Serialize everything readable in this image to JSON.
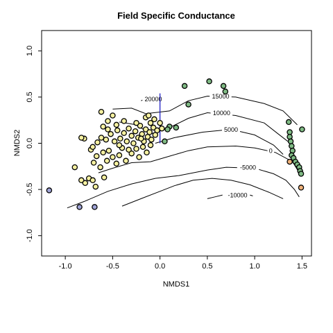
{
  "chart_data": {
    "type": "scatter",
    "title": "Field Specific Conductance",
    "xlabel": "NMDS1",
    "ylabel": "NMDS2",
    "xlim": [
      -1.25,
      1.6
    ],
    "ylim": [
      -1.22,
      1.22
    ],
    "xticks": [
      "-1.0",
      "-0.5",
      "0.0",
      "0.5",
      "1.0",
      "1.5"
    ],
    "xtick_values": [
      -1.0,
      -0.5,
      0.0,
      0.5,
      1.0,
      1.5
    ],
    "yticks": [
      "-1.0",
      "-0.5",
      "0.0",
      "0.5",
      "1.0"
    ],
    "ytick_values": [
      -1.0,
      -0.5,
      0.0,
      0.5,
      1.0
    ],
    "grid": false,
    "colors": {
      "yellow": "#f5f0a0",
      "green": "#7fba84",
      "purple": "#9fa3d6",
      "orange": "#f0b27a",
      "vector": "#1010c0"
    },
    "vector": {
      "from": [
        0.0,
        0.0
      ],
      "to": [
        0.0,
        0.54
      ]
    },
    "contours": [
      {
        "label": "20000",
        "label_at": [
          -0.07,
          0.48
        ],
        "points": [
          [
            -0.2,
            0.46
          ],
          [
            -0.1,
            0.5
          ],
          [
            0.0,
            0.52
          ]
        ]
      },
      {
        "label": "15000",
        "label_at": [
          0.64,
          0.51
        ],
        "points": [
          [
            -0.5,
            0.37
          ],
          [
            -0.3,
            0.38
          ],
          [
            -0.15,
            0.32
          ],
          [
            0.1,
            0.35
          ],
          [
            0.3,
            0.46
          ],
          [
            0.5,
            0.51
          ],
          [
            0.8,
            0.5
          ],
          [
            1.1,
            0.43
          ],
          [
            1.3,
            0.35
          ],
          [
            1.45,
            0.2
          ]
        ]
      },
      {
        "label": "10000",
        "label_at": [
          0.65,
          0.33
        ],
        "points": [
          [
            -0.43,
            0.23
          ],
          [
            -0.25,
            0.2
          ],
          [
            -0.1,
            0.1
          ],
          [
            0.1,
            0.17
          ],
          [
            0.3,
            0.27
          ],
          [
            0.5,
            0.33
          ],
          [
            0.8,
            0.3
          ],
          [
            1.1,
            0.22
          ],
          [
            1.25,
            0.1
          ],
          [
            1.35,
            0.02
          ]
        ]
      },
      {
        "label": "5000",
        "label_at": [
          0.75,
          0.15
        ],
        "points": [
          [
            -0.05,
            0.0
          ],
          [
            0.15,
            0.06
          ],
          [
            0.45,
            0.12
          ],
          [
            0.75,
            0.15
          ],
          [
            1.0,
            0.09
          ],
          [
            1.2,
            -0.02
          ],
          [
            1.3,
            -0.12
          ]
        ]
      },
      {
        "label": "0",
        "label_at": [
          1.17,
          -0.08
        ],
        "points": [
          [
            -0.65,
            -0.32
          ],
          [
            -0.5,
            -0.27
          ],
          [
            -0.3,
            -0.21
          ],
          [
            -0.1,
            -0.2
          ],
          [
            0.1,
            -0.14
          ],
          [
            0.3,
            -0.08
          ],
          [
            0.5,
            -0.04
          ],
          [
            0.8,
            -0.03
          ],
          [
            1.0,
            -0.05
          ],
          [
            1.22,
            -0.1
          ],
          [
            1.4,
            -0.2
          ],
          [
            1.47,
            -0.32
          ]
        ]
      },
      {
        "label": "-5000",
        "label_at": [
          0.93,
          -0.26
        ],
        "points": [
          [
            -0.98,
            -0.7
          ],
          [
            -0.8,
            -0.63
          ],
          [
            -0.55,
            -0.52
          ],
          [
            -0.3,
            -0.44
          ],
          [
            -0.05,
            -0.38
          ],
          [
            0.2,
            -0.35
          ],
          [
            0.5,
            -0.29
          ],
          [
            0.7,
            -0.26
          ],
          [
            1.0,
            -0.27
          ],
          [
            1.2,
            -0.33
          ],
          [
            1.33,
            -0.4
          ],
          [
            1.42,
            -0.5
          ],
          [
            1.47,
            -0.58
          ]
        ]
      },
      {
        "label": "-10000",
        "label_at": [
          0.82,
          -0.56
        ],
        "points": [
          [
            -0.4,
            -0.68
          ],
          [
            -0.2,
            -0.6
          ],
          [
            0.0,
            -0.52
          ],
          [
            0.15,
            -0.46
          ],
          [
            0.35,
            -0.4
          ],
          [
            0.55,
            -0.38
          ],
          [
            0.75,
            -0.4
          ],
          [
            0.95,
            -0.45
          ],
          [
            1.15,
            -0.53
          ],
          [
            1.3,
            -0.6
          ]
        ]
      },
      {
        "label": "",
        "label_at": null,
        "points": [
          [
            0.5,
            -0.6
          ],
          [
            0.58,
            -0.58
          ],
          [
            0.66,
            -0.56
          ]
        ]
      },
      {
        "label": "",
        "label_at": null,
        "points": [
          [
            0.95,
            -0.56
          ],
          [
            0.98,
            -0.57
          ]
        ]
      }
    ],
    "points": [
      {
        "x": -1.17,
        "y": -0.51,
        "c": "purple"
      },
      {
        "x": -0.85,
        "y": -0.69,
        "c": "purple"
      },
      {
        "x": -0.69,
        "y": -0.69,
        "c": "purple"
      },
      {
        "x": -0.9,
        "y": -0.26,
        "c": "yellow"
      },
      {
        "x": -0.83,
        "y": -0.4,
        "c": "yellow"
      },
      {
        "x": -0.79,
        "y": -0.43,
        "c": "yellow"
      },
      {
        "x": -0.75,
        "y": -0.38,
        "c": "yellow"
      },
      {
        "x": -0.71,
        "y": -0.4,
        "c": "yellow"
      },
      {
        "x": -0.68,
        "y": -0.47,
        "c": "yellow"
      },
      {
        "x": -0.59,
        "y": -0.37,
        "c": "yellow"
      },
      {
        "x": -0.63,
        "y": -0.26,
        "c": "yellow"
      },
      {
        "x": -0.7,
        "y": -0.21,
        "c": "yellow"
      },
      {
        "x": -0.67,
        "y": -0.14,
        "c": "yellow"
      },
      {
        "x": -0.73,
        "y": -0.07,
        "c": "yellow"
      },
      {
        "x": -0.8,
        "y": 0.05,
        "c": "yellow"
      },
      {
        "x": -0.83,
        "y": 0.06,
        "c": "yellow"
      },
      {
        "x": -0.71,
        "y": -0.04,
        "c": "yellow"
      },
      {
        "x": -0.66,
        "y": 0.01,
        "c": "yellow"
      },
      {
        "x": -0.62,
        "y": 0.06,
        "c": "yellow"
      },
      {
        "x": -0.6,
        "y": -0.1,
        "c": "yellow"
      },
      {
        "x": -0.56,
        "y": -0.19,
        "c": "yellow"
      },
      {
        "x": -0.54,
        "y": -0.08,
        "c": "yellow"
      },
      {
        "x": -0.5,
        "y": -0.15,
        "c": "yellow"
      },
      {
        "x": -0.46,
        "y": -0.22,
        "c": "yellow"
      },
      {
        "x": -0.43,
        "y": -0.13,
        "c": "yellow"
      },
      {
        "x": -0.4,
        "y": -0.05,
        "c": "yellow"
      },
      {
        "x": -0.36,
        "y": -0.19,
        "c": "yellow"
      },
      {
        "x": -0.3,
        "y": -0.11,
        "c": "yellow"
      },
      {
        "x": -0.25,
        "y": -0.06,
        "c": "yellow"
      },
      {
        "x": -0.22,
        "y": -0.15,
        "c": "yellow"
      },
      {
        "x": -0.18,
        "y": -0.04,
        "c": "yellow"
      },
      {
        "x": -0.14,
        "y": -0.1,
        "c": "yellow"
      },
      {
        "x": -0.1,
        "y": -0.02,
        "c": "yellow"
      },
      {
        "x": -0.57,
        "y": 0.04,
        "c": "yellow"
      },
      {
        "x": -0.52,
        "y": 0.1,
        "c": "yellow"
      },
      {
        "x": -0.48,
        "y": 0.02,
        "c": "yellow"
      },
      {
        "x": -0.45,
        "y": 0.14,
        "c": "yellow"
      },
      {
        "x": -0.42,
        "y": 0.05,
        "c": "yellow"
      },
      {
        "x": -0.38,
        "y": 0.11,
        "c": "yellow"
      },
      {
        "x": -0.35,
        "y": 0.02,
        "c": "yellow"
      },
      {
        "x": -0.33,
        "y": 0.16,
        "c": "yellow"
      },
      {
        "x": -0.3,
        "y": 0.08,
        "c": "yellow"
      },
      {
        "x": -0.28,
        "y": 0.0,
        "c": "yellow"
      },
      {
        "x": -0.26,
        "y": 0.13,
        "c": "yellow"
      },
      {
        "x": -0.23,
        "y": 0.06,
        "c": "yellow"
      },
      {
        "x": -0.21,
        "y": 0.19,
        "c": "yellow"
      },
      {
        "x": -0.19,
        "y": 0.1,
        "c": "yellow"
      },
      {
        "x": -0.17,
        "y": 0.02,
        "c": "yellow"
      },
      {
        "x": -0.15,
        "y": 0.15,
        "c": "yellow"
      },
      {
        "x": -0.13,
        "y": 0.07,
        "c": "yellow"
      },
      {
        "x": -0.11,
        "y": 0.12,
        "c": "yellow"
      },
      {
        "x": -0.09,
        "y": 0.04,
        "c": "yellow"
      },
      {
        "x": -0.07,
        "y": 0.17,
        "c": "yellow"
      },
      {
        "x": -0.05,
        "y": 0.09,
        "c": "yellow"
      },
      {
        "x": -0.03,
        "y": 0.14,
        "c": "yellow"
      },
      {
        "x": -0.06,
        "y": 0.26,
        "c": "yellow"
      },
      {
        "x": -0.1,
        "y": 0.22,
        "c": "yellow"
      },
      {
        "x": -0.15,
        "y": 0.28,
        "c": "yellow"
      },
      {
        "x": -0.25,
        "y": 0.22,
        "c": "yellow"
      },
      {
        "x": -0.38,
        "y": 0.24,
        "c": "yellow"
      },
      {
        "x": -0.5,
        "y": 0.3,
        "c": "yellow"
      },
      {
        "x": -0.55,
        "y": 0.24,
        "c": "yellow"
      },
      {
        "x": -0.62,
        "y": 0.34,
        "c": "yellow"
      },
      {
        "x": -0.6,
        "y": 0.18,
        "c": "yellow"
      },
      {
        "x": -0.55,
        "y": 0.15,
        "c": "yellow"
      },
      {
        "x": -0.46,
        "y": 0.2,
        "c": "yellow"
      },
      {
        "x": -0.43,
        "y": -0.02,
        "c": "yellow"
      },
      {
        "x": -0.33,
        "y": -0.07,
        "c": "yellow"
      },
      {
        "x": -0.2,
        "y": 0.05,
        "c": "yellow"
      },
      {
        "x": -0.12,
        "y": 0.3,
        "c": "yellow"
      },
      {
        "x": 0.0,
        "y": 0.22,
        "c": "yellow"
      },
      {
        "x": 0.02,
        "y": 0.16,
        "c": "yellow"
      },
      {
        "x": 0.05,
        "y": 0.02,
        "c": "green"
      },
      {
        "x": 0.1,
        "y": 0.18,
        "c": "green"
      },
      {
        "x": 0.08,
        "y": 0.15,
        "c": "green"
      },
      {
        "x": 0.17,
        "y": 0.17,
        "c": "green"
      },
      {
        "x": 0.26,
        "y": 0.62,
        "c": "green"
      },
      {
        "x": 0.3,
        "y": 0.42,
        "c": "green"
      },
      {
        "x": 0.52,
        "y": 0.67,
        "c": "green"
      },
      {
        "x": 0.67,
        "y": 0.62,
        "c": "green"
      },
      {
        "x": 0.69,
        "y": 0.56,
        "c": "green"
      },
      {
        "x": 1.36,
        "y": 0.23,
        "c": "green"
      },
      {
        "x": 1.37,
        "y": 0.12,
        "c": "green"
      },
      {
        "x": 1.37,
        "y": 0.07,
        "c": "green"
      },
      {
        "x": 1.38,
        "y": 0.02,
        "c": "green"
      },
      {
        "x": 1.39,
        "y": -0.03,
        "c": "green"
      },
      {
        "x": 1.4,
        "y": -0.08,
        "c": "green"
      },
      {
        "x": 1.39,
        "y": -0.13,
        "c": "green"
      },
      {
        "x": 1.41,
        "y": -0.16,
        "c": "green"
      },
      {
        "x": 1.43,
        "y": -0.2,
        "c": "green"
      },
      {
        "x": 1.45,
        "y": -0.23,
        "c": "green"
      },
      {
        "x": 1.47,
        "y": -0.26,
        "c": "green"
      },
      {
        "x": 1.48,
        "y": -0.3,
        "c": "green"
      },
      {
        "x": 1.49,
        "y": -0.33,
        "c": "green"
      },
      {
        "x": 1.5,
        "y": 0.15,
        "c": "green"
      },
      {
        "x": 1.37,
        "y": -0.2,
        "c": "orange"
      },
      {
        "x": 1.49,
        "y": -0.48,
        "c": "orange"
      }
    ]
  }
}
